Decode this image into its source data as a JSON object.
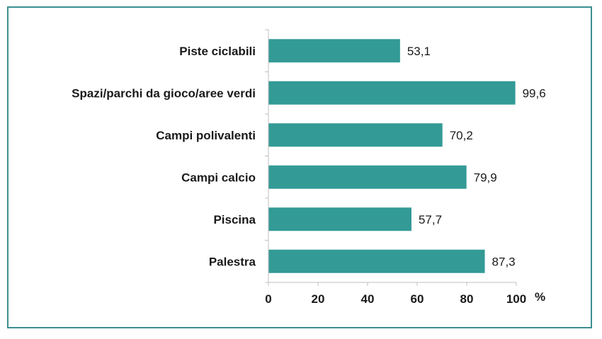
{
  "chart_data": {
    "type": "bar",
    "orientation": "horizontal",
    "categories": [
      "Piste ciclabili",
      "Spazi/parchi da gioco/aree verdi",
      "Campi polivalenti",
      "Campi calcio",
      "Piscina",
      "Palestra"
    ],
    "values": [
      53.1,
      99.6,
      70.2,
      79.9,
      57.7,
      87.3
    ],
    "value_labels": [
      "53,1",
      "99,6",
      "70,2",
      "79,9",
      "57,7",
      "87,3"
    ],
    "xlim": [
      0,
      100
    ],
    "xticks": [
      0,
      20,
      40,
      60,
      80,
      100
    ],
    "xtick_labels": [
      "0",
      "20",
      "40",
      "60",
      "80",
      "100"
    ],
    "xlabel": "%",
    "ylabel": "",
    "title": "",
    "grid": false,
    "bar_color": "#339a96"
  },
  "colors": {
    "frame": "#3b8f8f",
    "bar": "#339a96",
    "axis": "#bfbfbf"
  }
}
